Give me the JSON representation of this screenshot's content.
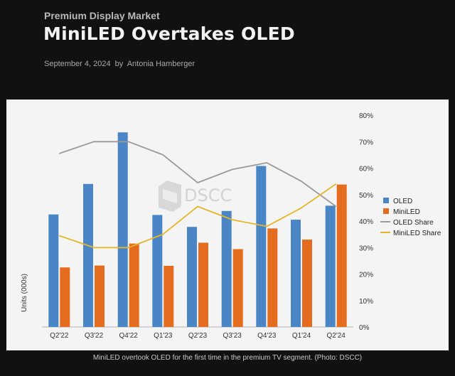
{
  "header": {
    "kicker": "Premium Display Market",
    "title": "MiniLED Overtakes OLED",
    "date": "September 4, 2024",
    "by": "by",
    "author": "Antonia Hamberger"
  },
  "caption": "MiniLED overtook OLED for the first time in the premium TV segment. (Photo: DSCC)",
  "watermark": "DSCC",
  "colors": {
    "oled": "#4a86c5",
    "miniled": "#e46c1e",
    "oled_share": "#9a9a9a",
    "miniled_share": "#e5b62b"
  },
  "chart_data": {
    "type": "bar",
    "categories": [
      "Q2'22",
      "Q3'22",
      "Q4'22",
      "Q1'23",
      "Q2'23",
      "Q3'23",
      "Q4'23",
      "Q1'24",
      "Q2'24"
    ],
    "series": [
      {
        "name": "OLED",
        "kind": "bar",
        "axis": "left",
        "values": [
          42.5,
          54,
          73.5,
          42.3,
          37.8,
          43.8,
          60.8,
          40.5,
          45.8
        ]
      },
      {
        "name": "MiniLED",
        "kind": "bar",
        "axis": "left",
        "values": [
          22.5,
          23.2,
          31.5,
          23.1,
          31.8,
          29.4,
          37.2,
          33,
          53.8
        ]
      },
      {
        "name": "OLED Share",
        "kind": "line",
        "axis": "right",
        "values": [
          65.5,
          70,
          70,
          65,
          54.5,
          59.5,
          62,
          55,
          45.5
        ]
      },
      {
        "name": "MiniLED Share",
        "kind": "line",
        "axis": "right",
        "values": [
          34.5,
          30,
          30,
          35,
          45.5,
          40.5,
          38,
          45,
          54
        ]
      }
    ],
    "ylabel": "Units (000s)",
    "ylim_left": [
      0,
      80
    ],
    "right_axis": {
      "ticks": [
        "0%",
        "10%",
        "20%",
        "30%",
        "40%",
        "50%",
        "60%",
        "70%",
        "80%"
      ],
      "ylim": [
        0,
        80
      ]
    },
    "legend": [
      "OLED",
      "MiniLED",
      "OLED Share",
      "MiniLED Share"
    ],
    "legend_position": "right",
    "grid": false
  }
}
